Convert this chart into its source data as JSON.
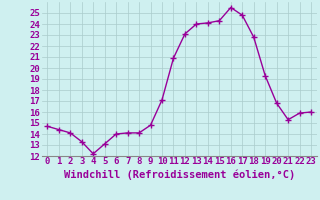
{
  "x": [
    0,
    1,
    2,
    3,
    4,
    5,
    6,
    7,
    8,
    9,
    10,
    11,
    12,
    13,
    14,
    15,
    16,
    17,
    18,
    19,
    20,
    21,
    22,
    23
  ],
  "y": [
    14.7,
    14.4,
    14.1,
    13.3,
    12.2,
    13.1,
    14.0,
    14.1,
    14.1,
    14.8,
    17.1,
    20.9,
    23.1,
    24.0,
    24.1,
    24.3,
    25.5,
    24.8,
    22.8,
    19.3,
    16.8,
    15.3,
    15.9,
    16.0
  ],
  "line_color": "#990099",
  "marker": "+",
  "marker_color": "#990099",
  "bg_color": "#cff0f0",
  "grid_color": "#aacccc",
  "xlabel": "Windchill (Refroidissement éolien,°C)",
  "xlim": [
    -0.5,
    23.5
  ],
  "ylim": [
    12,
    26
  ],
  "yticks": [
    12,
    13,
    14,
    15,
    16,
    17,
    18,
    19,
    20,
    21,
    22,
    23,
    24,
    25
  ],
  "xticks": [
    0,
    1,
    2,
    3,
    4,
    5,
    6,
    7,
    8,
    9,
    10,
    11,
    12,
    13,
    14,
    15,
    16,
    17,
    18,
    19,
    20,
    21,
    22,
    23
  ],
  "tick_label_color": "#990099",
  "xlabel_color": "#990099",
  "xlabel_fontsize": 7.5,
  "tick_fontsize": 6.5,
  "line_width": 1.0,
  "marker_size": 4,
  "separator_color": "#888888"
}
